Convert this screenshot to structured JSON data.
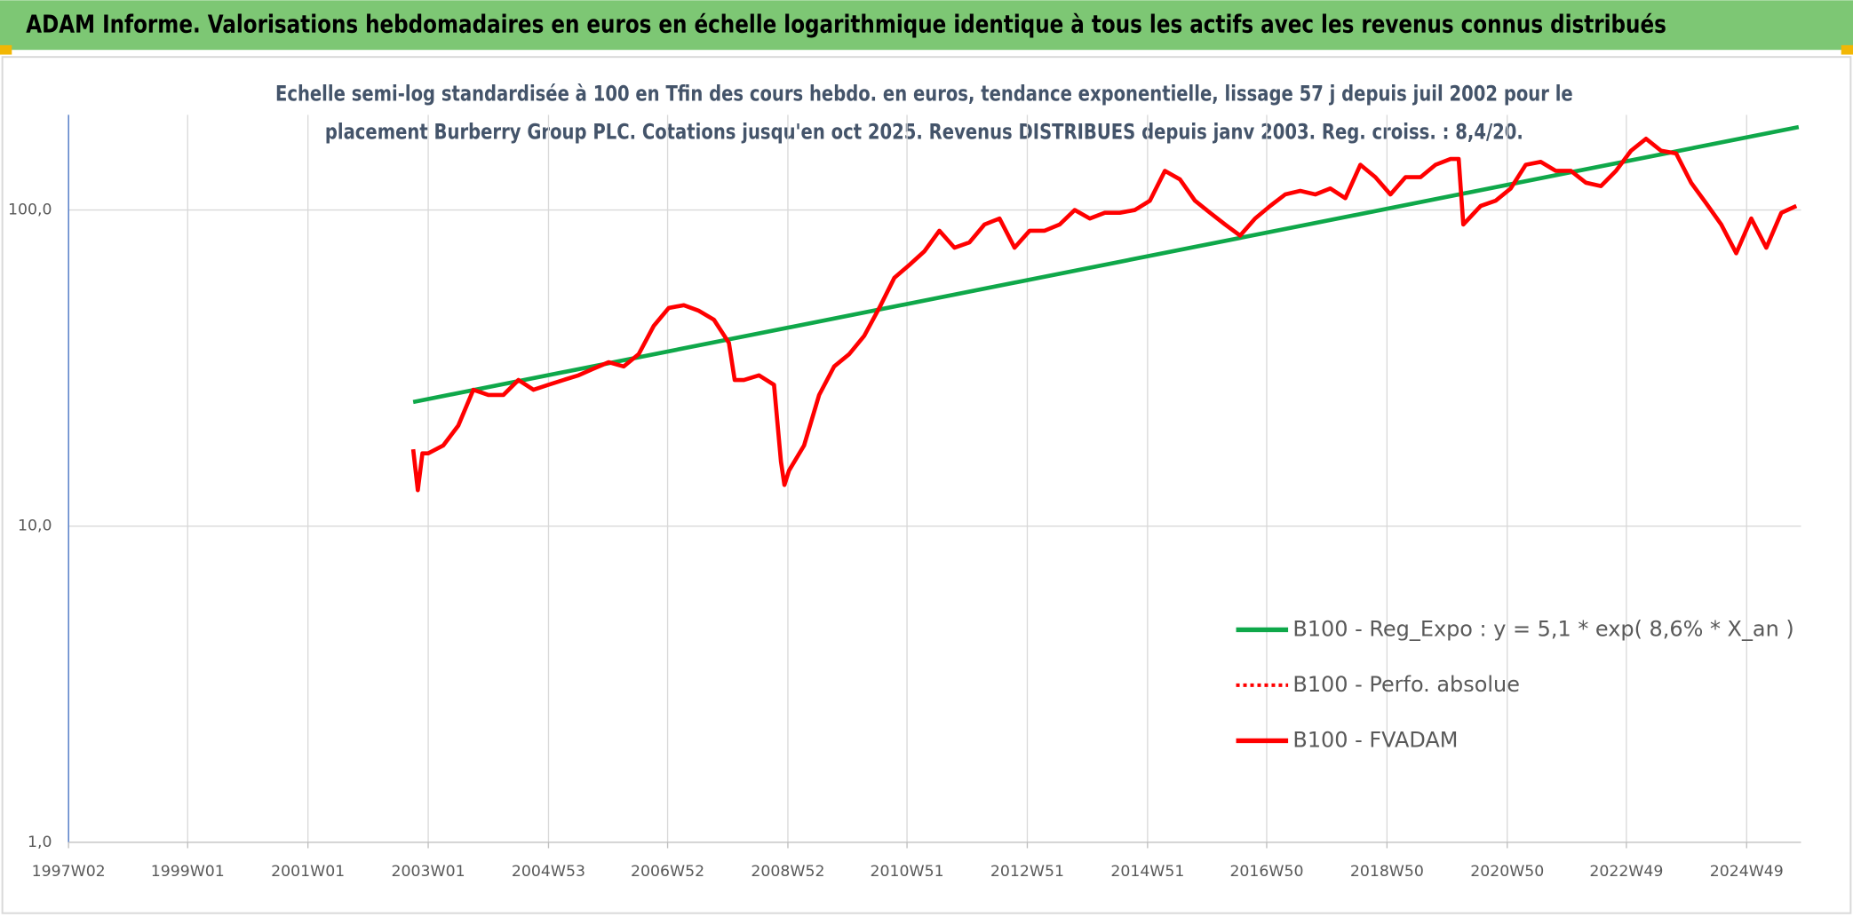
{
  "chart_data": {
    "type": "line",
    "header": "ADAM Informe. Valorisations hebdomadaires en euros en échelle logarithmique identique à tous les actifs avec les revenus connus distribués",
    "subtitle_lines": [
      "Echelle semi-log standardisée à 100 en Tfin des cours hebdo. en euros, tendance exponentielle, lissage 57 j depuis juil 2002 pour le",
      "placement Burberry Group PLC. Cotations jusqu'en oct 2025. Revenus DISTRIBUES depuis janv 2003. Reg. croiss. : 8,4/20."
    ],
    "log_scale": true,
    "grid": true,
    "ylim": [
      1,
      200
    ],
    "yticks": [
      {
        "value": 1,
        "label": "1,0"
      },
      {
        "value": 10,
        "label": "10,0"
      },
      {
        "value": 100,
        "label": "100,0"
      }
    ],
    "xlim": [
      "1997W02",
      "2025W44"
    ],
    "xticks": [
      "1997W02",
      "1999W01",
      "2001W01",
      "2003W01",
      "2004W53",
      "2006W52",
      "2008W52",
      "2010W51",
      "2012W51",
      "2014W51",
      "2016W50",
      "2018W50",
      "2020W50",
      "2022W49",
      "2024W49"
    ],
    "series": [
      {
        "name": "B100 - Reg_Expo : y = 5,1 * exp( 8,6% *  X_an )",
        "color": "#0fa84a",
        "x": [
          "2002W40",
          "2025W42"
        ],
        "values": [
          24.7,
          183
        ]
      },
      {
        "name": "B100 - Perfo. absolue",
        "color": "#ff0000",
        "line_style": "dotted"
      },
      {
        "name": "B100 - FVADAM",
        "color": "#ff0000",
        "x": [
          "2002W40",
          "2002W44",
          "2002W48",
          "2003W01",
          "2003W14",
          "2003W27",
          "2003W40",
          "2004W01",
          "2004W14",
          "2004W27",
          "2004W40",
          "2005W01",
          "2005W14",
          "2005W27",
          "2005W40",
          "2006W01",
          "2006W14",
          "2006W27",
          "2006W40",
          "2007W01",
          "2007W14",
          "2007W27",
          "2007W40",
          "2008W01",
          "2008W06",
          "2008W14",
          "2008W27",
          "2008W40",
          "2008W46",
          "2008W49",
          "2009W01",
          "2009W14",
          "2009W27",
          "2009W40",
          "2010W01",
          "2010W14",
          "2010W27",
          "2010W40",
          "2011W01",
          "2011W14",
          "2011W27",
          "2011W40",
          "2012W01",
          "2012W14",
          "2012W27",
          "2012W40",
          "2013W01",
          "2013W14",
          "2013W27",
          "2013W40",
          "2014W01",
          "2014W14",
          "2014W27",
          "2014W40",
          "2015W01",
          "2015W14",
          "2015W27",
          "2015W40",
          "2016W01",
          "2016W14",
          "2016W27",
          "2016W40",
          "2017W01",
          "2017W14",
          "2017W27",
          "2017W40",
          "2018W01",
          "2018W14",
          "2018W27",
          "2018W40",
          "2019W01",
          "2019W14",
          "2019W27",
          "2019W40",
          "2020W01",
          "2020W08",
          "2020W12",
          "2020W27",
          "2020W40",
          "2021W01",
          "2021W14",
          "2021W27",
          "2021W40",
          "2022W01",
          "2022W14",
          "2022W27",
          "2022W40",
          "2023W01",
          "2023W14",
          "2023W27",
          "2023W40",
          "2024W01",
          "2024W14",
          "2024W27",
          "2024W40",
          "2025W01",
          "2025W14",
          "2025W27",
          "2025W40"
        ],
        "values": [
          17.5,
          13,
          17,
          17,
          18,
          20.8,
          27,
          26,
          26,
          29,
          27,
          28,
          29,
          30,
          31.5,
          33,
          32,
          35,
          43,
          49,
          50,
          48,
          45,
          38,
          29,
          29,
          30,
          28,
          16,
          13.5,
          15,
          18,
          26,
          32,
          35,
          40,
          49,
          61,
          67,
          74,
          86,
          76,
          79,
          90,
          94,
          76,
          86,
          86,
          90,
          100,
          94,
          98,
          98,
          100,
          107,
          133,
          125,
          107,
          98,
          90,
          83,
          94,
          103,
          112,
          115,
          112,
          117,
          109,
          139,
          127,
          112,
          127,
          127,
          139,
          145,
          145,
          90,
          103,
          107,
          117,
          139,
          142,
          133,
          133,
          122,
          119,
          133,
          154,
          168,
          154,
          151,
          122,
          105,
          90,
          73,
          94,
          76,
          98,
          103
        ]
      }
    ]
  }
}
